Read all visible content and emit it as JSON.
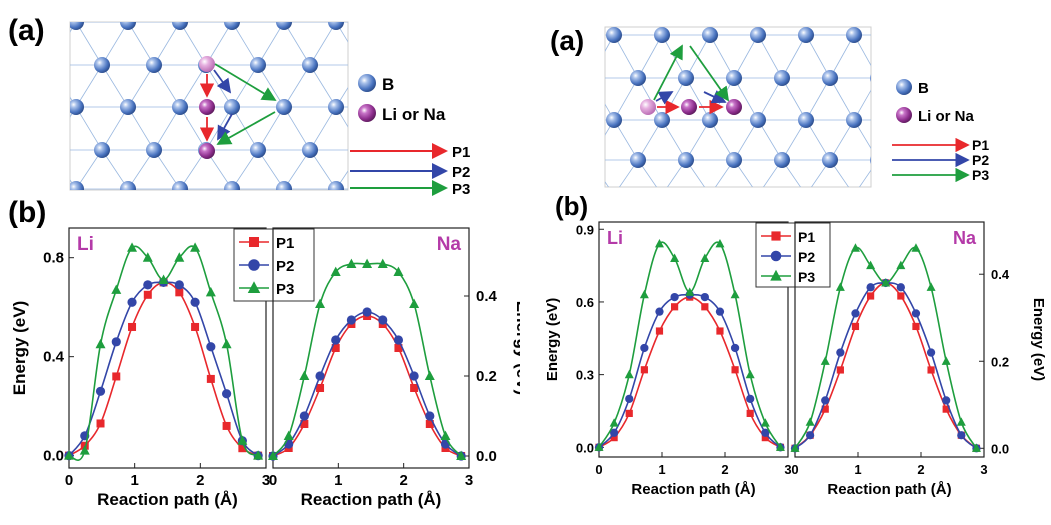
{
  "figures": [
    {
      "panel_a_label": "(a)",
      "panel_b_label": "(b)",
      "legend_atoms": [
        {
          "symbol": "B",
          "color": "#4a74c0"
        },
        {
          "symbol": "Li or Na",
          "color": "#8c2d8c"
        }
      ],
      "legend_paths": [
        {
          "label": "P1",
          "color": "#e8282c"
        },
        {
          "label": "P2",
          "color": "#3346a8"
        },
        {
          "label": "P3",
          "color": "#1e9e3e"
        }
      ]
    },
    {
      "panel_a_label": "(a)",
      "panel_b_label": "(b)",
      "legend_atoms": [
        {
          "symbol": "B",
          "color": "#4a74c0"
        },
        {
          "symbol": "Li or Na",
          "color": "#8c2d8c"
        }
      ],
      "legend_paths": [
        {
          "label": "P1",
          "color": "#e8282c"
        },
        {
          "label": "P2",
          "color": "#3346a8"
        },
        {
          "label": "P3",
          "color": "#1e9e3e"
        }
      ]
    }
  ],
  "chart_data": [
    {
      "type": "line",
      "element": "Li",
      "xlabel": "Reaction path (Å)",
      "ylabel": "Energy (eV)",
      "xlim": [
        0,
        3
      ],
      "ylim": [
        -0.05,
        0.92
      ],
      "xticks": [
        "0",
        "1",
        "2",
        "3"
      ],
      "yticks": [
        "0.0",
        "0.4",
        "0.8"
      ],
      "x": [
        0,
        0.24,
        0.48,
        0.72,
        0.96,
        1.2,
        1.44,
        1.68,
        1.92,
        2.16,
        2.4,
        2.64,
        2.88
      ],
      "series": [
        {
          "name": "P1",
          "color": "#e8282c",
          "marker": "square",
          "values": [
            0.0,
            0.04,
            0.13,
            0.32,
            0.52,
            0.65,
            0.7,
            0.66,
            0.52,
            0.31,
            0.12,
            0.03,
            0.0
          ]
        },
        {
          "name": "P2",
          "color": "#3346a8",
          "marker": "circle",
          "values": [
            0.0,
            0.08,
            0.26,
            0.46,
            0.62,
            0.69,
            0.7,
            0.69,
            0.62,
            0.44,
            0.25,
            0.06,
            0.0
          ]
        },
        {
          "name": "P3",
          "color": "#1e9e3e",
          "marker": "triangle",
          "values": [
            0.0,
            0.02,
            0.45,
            0.67,
            0.84,
            0.8,
            0.71,
            0.8,
            0.84,
            0.66,
            0.45,
            0.06,
            0.0
          ]
        }
      ],
      "legend": "top-center"
    },
    {
      "type": "line",
      "element": "Na",
      "xlabel": "Reaction path (Å)",
      "ylabel": "Energy (eV)",
      "xlim": [
        0,
        3
      ],
      "ylim": [
        -0.03,
        0.57
      ],
      "xticks": [
        "0",
        "1",
        "2",
        "3"
      ],
      "yticks": [
        "0.0",
        "0.2",
        "0.4"
      ],
      "x": [
        0,
        0.24,
        0.48,
        0.72,
        0.96,
        1.2,
        1.44,
        1.68,
        1.92,
        2.16,
        2.4,
        2.64,
        2.88
      ],
      "series": [
        {
          "name": "P1",
          "values": [
            0.0,
            0.02,
            0.08,
            0.17,
            0.27,
            0.33,
            0.35,
            0.33,
            0.27,
            0.17,
            0.08,
            0.02,
            0.0
          ]
        },
        {
          "name": "P2",
          "values": [
            0.0,
            0.03,
            0.1,
            0.2,
            0.29,
            0.34,
            0.36,
            0.34,
            0.29,
            0.2,
            0.1,
            0.03,
            0.0
          ]
        },
        {
          "name": "P3",
          "values": [
            0.0,
            0.05,
            0.2,
            0.38,
            0.46,
            0.48,
            0.48,
            0.48,
            0.46,
            0.38,
            0.2,
            0.05,
            0.0
          ]
        }
      ]
    },
    {
      "type": "line",
      "element": "Li",
      "xlabel": "Reaction path (Å)",
      "ylabel": "Energy (eV)",
      "xlim": [
        0,
        3
      ],
      "ylim": [
        -0.04,
        0.93
      ],
      "xticks": [
        "0",
        "1",
        "2",
        "3"
      ],
      "yticks": [
        "0.0",
        "0.3",
        "0.6",
        "0.9"
      ],
      "x": [
        0,
        0.24,
        0.48,
        0.72,
        0.96,
        1.2,
        1.44,
        1.68,
        1.92,
        2.16,
        2.4,
        2.64,
        2.88
      ],
      "series": [
        {
          "name": "P1",
          "values": [
            0.0,
            0.04,
            0.14,
            0.32,
            0.48,
            0.58,
            0.62,
            0.58,
            0.48,
            0.32,
            0.14,
            0.04,
            0.0
          ]
        },
        {
          "name": "P2",
          "values": [
            0.0,
            0.06,
            0.2,
            0.41,
            0.56,
            0.62,
            0.63,
            0.62,
            0.56,
            0.41,
            0.2,
            0.06,
            0.0
          ]
        },
        {
          "name": "P3",
          "values": [
            0.0,
            0.1,
            0.3,
            0.63,
            0.84,
            0.78,
            0.64,
            0.78,
            0.84,
            0.63,
            0.3,
            0.1,
            0.0
          ]
        }
      ],
      "legend": "top-right"
    },
    {
      "type": "line",
      "element": "Na",
      "xlabel": "Reaction path (Å)",
      "ylabel": "Energy (eV)",
      "xlim": [
        0,
        3
      ],
      "ylim": [
        -0.02,
        0.52
      ],
      "xticks": [
        "0",
        "1",
        "2",
        "3"
      ],
      "yticks": [
        "0.0",
        "0.2",
        "0.4"
      ],
      "x": [
        0,
        0.24,
        0.48,
        0.72,
        0.96,
        1.2,
        1.44,
        1.68,
        1.92,
        2.16,
        2.4,
        2.64,
        2.88
      ],
      "series": [
        {
          "name": "P1",
          "values": [
            0.0,
            0.03,
            0.09,
            0.18,
            0.28,
            0.35,
            0.38,
            0.35,
            0.28,
            0.18,
            0.09,
            0.03,
            0.0
          ]
        },
        {
          "name": "P2",
          "values": [
            0.0,
            0.03,
            0.11,
            0.22,
            0.31,
            0.37,
            0.38,
            0.37,
            0.31,
            0.22,
            0.11,
            0.03,
            0.0
          ]
        },
        {
          "name": "P3",
          "values": [
            0.0,
            0.06,
            0.2,
            0.37,
            0.46,
            0.42,
            0.38,
            0.42,
            0.46,
            0.37,
            0.2,
            0.06,
            0.0
          ]
        }
      ]
    }
  ]
}
